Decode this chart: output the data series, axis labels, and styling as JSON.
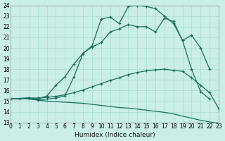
{
  "xlabel": "Humidex (Indice chaleur)",
  "xlim": [
    0,
    23
  ],
  "ylim": [
    13,
    24
  ],
  "xticks": [
    0,
    1,
    2,
    3,
    4,
    5,
    6,
    7,
    8,
    9,
    10,
    11,
    12,
    13,
    14,
    15,
    16,
    17,
    18,
    19,
    20,
    21,
    22,
    23
  ],
  "yticks": [
    13,
    14,
    15,
    16,
    17,
    18,
    19,
    20,
    21,
    22,
    23,
    24
  ],
  "bg_color": "#caeee8",
  "grid_color": "#aaddcc",
  "line_color": "#1a7060",
  "line1": {
    "x": [
      0,
      1,
      2,
      3,
      4,
      5,
      6,
      7,
      8,
      9,
      10,
      11,
      12,
      13,
      14,
      15,
      16,
      17,
      18,
      19,
      20,
      21,
      22,
      23
    ],
    "y": [
      15.2,
      15.25,
      15.2,
      15.1,
      15.0,
      14.95,
      14.9,
      14.85,
      14.8,
      14.7,
      14.6,
      14.5,
      14.4,
      14.35,
      14.25,
      14.15,
      14.05,
      13.95,
      13.8,
      13.6,
      13.4,
      13.2,
      13.05,
      12.95
    ],
    "markers": false
  },
  "line2": {
    "x": [
      0,
      1,
      2,
      3,
      4,
      5,
      6,
      7,
      8,
      9,
      10,
      11,
      12,
      13,
      14,
      15,
      16,
      17,
      18,
      19,
      20,
      21,
      22,
      23
    ],
    "y": [
      15.2,
      15.25,
      15.3,
      15.3,
      15.35,
      15.45,
      15.6,
      15.8,
      16.05,
      16.35,
      16.65,
      16.95,
      17.2,
      17.5,
      17.7,
      17.85,
      17.95,
      18.0,
      17.9,
      17.8,
      17.2,
      16.5,
      15.8,
      14.3
    ],
    "markers": true
  },
  "line3": {
    "x": [
      0,
      2,
      3,
      4,
      5,
      6,
      7,
      8,
      9,
      10,
      11,
      12,
      13,
      14,
      15,
      16,
      17,
      18,
      19,
      20,
      21,
      22
    ],
    "y": [
      15.2,
      15.3,
      15.2,
      15.5,
      16.5,
      17.3,
      18.5,
      19.5,
      20.1,
      20.5,
      21.5,
      21.8,
      22.2,
      22.0,
      22.0,
      21.5,
      22.8,
      22.5,
      20.7,
      21.2,
      20.0,
      18.0
    ],
    "markers": true
  },
  "line4": {
    "x": [
      0,
      2,
      3,
      4,
      5,
      6,
      7,
      8,
      9,
      10,
      11,
      12,
      13,
      14,
      15,
      16,
      17,
      18,
      19,
      20,
      21,
      22
    ],
    "y": [
      15.2,
      15.3,
      15.1,
      15.2,
      15.3,
      15.5,
      17.3,
      19.5,
      20.2,
      22.7,
      22.9,
      22.3,
      23.9,
      24.0,
      23.9,
      23.7,
      23.0,
      22.3,
      20.7,
      18.0,
      15.9,
      15.2
    ],
    "markers": true
  }
}
